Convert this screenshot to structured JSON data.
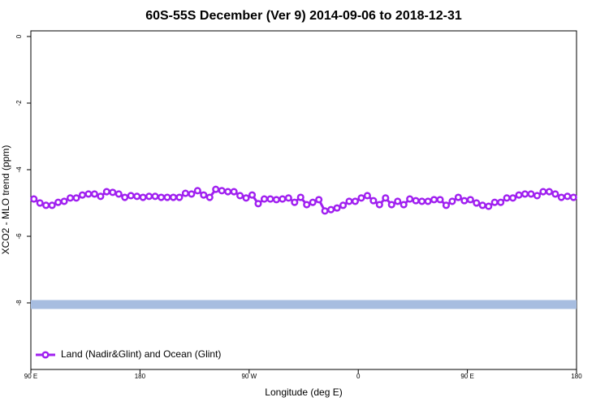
{
  "chart_data": {
    "type": "line",
    "title": "60S-55S December (Ver 9)   2014-09-06 to 2018-12-31",
    "x_label": "Longitude (deg E)",
    "y_label": "XCO2 - MLO trend (ppm)",
    "xlim": [
      90,
      540
    ],
    "xticks": [
      {
        "value": 90,
        "label": "90 E"
      },
      180,
      {
        "value": 270,
        "label": "90 W"
      },
      {
        "value": 360,
        "label": "0"
      },
      {
        "value": 450,
        "label": "90 E"
      },
      {
        "value": 540,
        "label": "180"
      }
    ],
    "ylim": [
      -10,
      0.17
    ],
    "yticks": [
      0,
      -2,
      -4,
      -6,
      -8
    ],
    "legend": "bottom-left",
    "reference_band": {
      "y": -8.05,
      "color": "#a7bde0"
    },
    "series": [
      {
        "name": "Land (Nadir&Glint) and Ocean (Glint)",
        "color": "#a020f0",
        "x": [
          92.5,
          97.5,
          102.5,
          107.5,
          112.5,
          117.5,
          122.5,
          127.5,
          132.5,
          137.5,
          142.5,
          147.5,
          152.5,
          157.5,
          162.5,
          167.5,
          172.5,
          177.5,
          182.5,
          187.5,
          192.5,
          197.5,
          202.5,
          207.5,
          212.5,
          217.5,
          222.5,
          227.5,
          232.5,
          237.5,
          242.5,
          247.5,
          252.5,
          257.5,
          262.5,
          267.5,
          272.5,
          277.5,
          282.5,
          287.5,
          292.5,
          297.5,
          302.5,
          307.5,
          312.5,
          317.5,
          322.5,
          327.5,
          332.5,
          337.5,
          342.5,
          347.5,
          352.5,
          357.5,
          362.5,
          367.5,
          372.5,
          377.5,
          382.5,
          387.5,
          392.5,
          397.5,
          402.5,
          407.5,
          412.5,
          417.5,
          422.5,
          427.5,
          432.5,
          437.5,
          442.5,
          447.5,
          452.5,
          457.5,
          462.5,
          467.5,
          472.5,
          477.5,
          482.5,
          487.5,
          492.5,
          497.5,
          502.5,
          507.5,
          512.5,
          517.5,
          522.5,
          527.5,
          532.5,
          537.5
        ],
        "values": [
          -4.88,
          -5.0,
          -5.07,
          -5.07,
          -4.98,
          -4.95,
          -4.85,
          -4.85,
          -4.76,
          -4.73,
          -4.73,
          -4.8,
          -4.66,
          -4.68,
          -4.73,
          -4.83,
          -4.78,
          -4.8,
          -4.83,
          -4.8,
          -4.8,
          -4.83,
          -4.83,
          -4.83,
          -4.83,
          -4.71,
          -4.73,
          -4.63,
          -4.76,
          -4.83,
          -4.59,
          -4.63,
          -4.66,
          -4.66,
          -4.78,
          -4.85,
          -4.76,
          -5.02,
          -4.88,
          -4.88,
          -4.9,
          -4.88,
          -4.85,
          -4.98,
          -4.83,
          -5.05,
          -4.98,
          -4.9,
          -5.24,
          -5.2,
          -5.15,
          -5.07,
          -4.95,
          -4.95,
          -4.85,
          -4.78,
          -4.93,
          -5.05,
          -4.85,
          -5.05,
          -4.95,
          -5.05,
          -4.88,
          -4.93,
          -4.95,
          -4.95,
          -4.9,
          -4.9,
          -5.07,
          -4.95,
          -4.83,
          -4.93,
          -4.9,
          -5.0,
          -5.07,
          -5.1,
          -4.98,
          -4.98,
          -4.85,
          -4.85,
          -4.76,
          -4.73,
          -4.73,
          -4.78,
          -4.66,
          -4.66,
          -4.73,
          -4.83,
          -4.8,
          -4.83
        ]
      }
    ]
  }
}
